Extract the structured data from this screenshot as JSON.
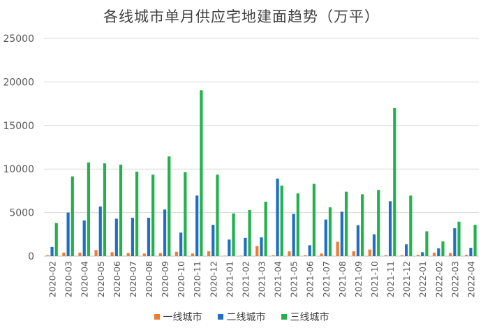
{
  "chart_data": {
    "type": "bar",
    "title": "各线城市单月供应宅地建面趋势（万平）",
    "xlabel": "",
    "ylabel": "",
    "ylim": [
      0,
      25000
    ],
    "yticks": [
      0,
      5000,
      10000,
      15000,
      20000,
      25000
    ],
    "grid": true,
    "legend_position": "bottom",
    "categories": [
      "2020-02",
      "2020-03",
      "2020-04",
      "2020-05",
      "2020-06",
      "2020-07",
      "2020-08",
      "2020-09",
      "2020-10",
      "2020-11",
      "2020-12",
      "2021-01",
      "2021-02",
      "2021-03",
      "2021-04",
      "2021-05",
      "2021-06",
      "2021-07",
      "2021-08",
      "2021-09",
      "2021-10",
      "2021-11",
      "2021-12",
      "2022-01",
      "2022-02",
      "2022-03",
      "2022-04"
    ],
    "series": [
      {
        "name": "一线城市",
        "color": "#ED7D31",
        "values": [
          100,
          400,
          400,
          700,
          450,
          350,
          300,
          350,
          500,
          300,
          550,
          50,
          50,
          1150,
          100,
          550,
          100,
          300,
          1650,
          550,
          750,
          100,
          100,
          150,
          400,
          350,
          150
        ]
      },
      {
        "name": "二线城市",
        "color": "#1F6FC5",
        "values": [
          1050,
          5000,
          4100,
          5700,
          4300,
          4400,
          4400,
          5350,
          2700,
          6950,
          3600,
          1900,
          2100,
          2150,
          8900,
          4850,
          1250,
          4200,
          5100,
          3550,
          2500,
          6300,
          1350,
          450,
          900,
          3200,
          950
        ]
      },
      {
        "name": "三线城市",
        "color": "#22B14C",
        "values": [
          3800,
          9150,
          10750,
          10650,
          10500,
          9700,
          9350,
          11450,
          9650,
          19050,
          9350,
          4900,
          5300,
          6250,
          8100,
          7200,
          8300,
          5600,
          7400,
          7100,
          7600,
          17000,
          6950,
          2850,
          1700,
          3950,
          3600
        ]
      }
    ]
  }
}
